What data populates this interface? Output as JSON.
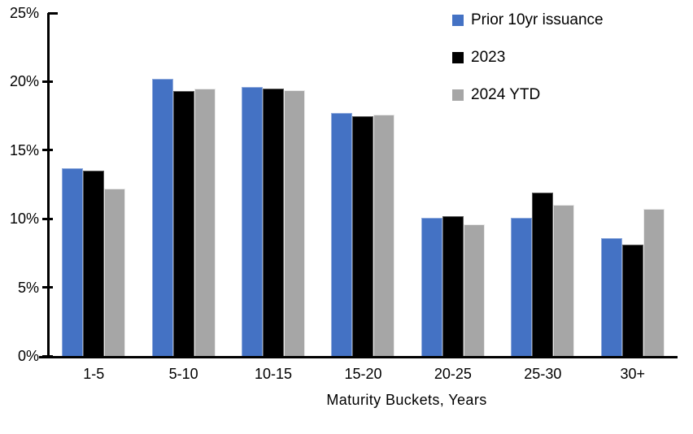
{
  "chart_data": {
    "type": "bar",
    "title": "",
    "categories": [
      "1-5",
      "5-10",
      "10-15",
      "15-20",
      "20-25",
      "25-30",
      "30+"
    ],
    "series": [
      {
        "name": "Prior 10yr issuance",
        "color": "#4472C4",
        "border_color": "#8FAADC",
        "values": [
          13.7,
          20.2,
          19.6,
          17.7,
          10.1,
          10.1,
          8.6
        ]
      },
      {
        "name": "2023",
        "color": "#000000",
        "border_color": "#5A5A5A",
        "values": [
          13.5,
          19.3,
          19.5,
          17.5,
          10.2,
          11.9,
          8.1
        ]
      },
      {
        "name": "2024 YTD",
        "color": "#A6A6A6",
        "border_color": "#E9E9E9",
        "values": [
          12.2,
          19.5,
          19.4,
          17.6,
          9.6,
          11.0,
          10.7
        ]
      }
    ],
    "xlabel": "Maturity Buckets, Years",
    "ylabel": "",
    "ylim": [
      0,
      25
    ],
    "yticks": [
      {
        "value": 0,
        "label": "0%"
      },
      {
        "value": 5,
        "label": "5%"
      },
      {
        "value": 10,
        "label": "10%"
      },
      {
        "value": 15,
        "label": "15%"
      },
      {
        "value": 20,
        "label": "20%"
      },
      {
        "value": 25,
        "label": "25%"
      }
    ],
    "grid": false,
    "legend_position": "top-right",
    "axis_color": "#000000",
    "background": "#FFFFFF"
  }
}
